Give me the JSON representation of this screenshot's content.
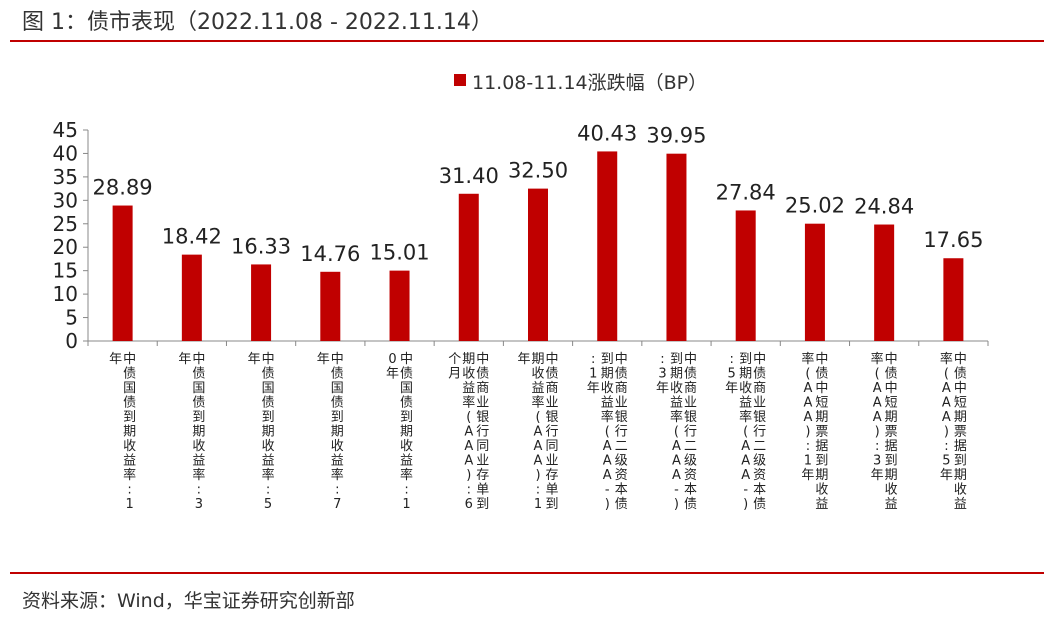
{
  "figure": {
    "title": "图 1：债市表现（2022.11.08 - 2022.11.14）",
    "source": "资料来源：Wind，华宝证券研究创新部"
  },
  "colors": {
    "bar": "#c00000",
    "rule": "#c00000",
    "axis": "#888888"
  },
  "chart_data": {
    "type": "bar",
    "title": "",
    "xlabel": "",
    "ylabel": "",
    "ylim": [
      0,
      45
    ],
    "yticks": [
      0,
      5,
      10,
      15,
      20,
      25,
      30,
      35,
      40,
      45
    ],
    "grid": false,
    "legend_position": "top-center",
    "categories": [
      "中债国债到期收益率:1年",
      "中债国债到期收益率:3年",
      "中债国债到期收益率:5年",
      "中债国债到期收益率:7年",
      "中债国债到期收益率:10年",
      "中债商业银行同业存单到期收益率(AAA):6个月",
      "中债商业银行同业存单到期收益率(AAA):1年",
      "中债商业银行二级资本债到期收益率(AAA-):1年",
      "中债商业银行二级资本债到期收益率(AAA-):3年",
      "中债商业银行二级资本债到期收益率(AAA-):5年",
      "中债中短期票据到期收益率(AAA):1年",
      "中债中短期票据到期收益率(AAA):3年",
      "中债中短期票据到期收益率(AAA):5年"
    ],
    "series": [
      {
        "name": "11.08-11.14涨跌幅（BP）",
        "values": [
          28.89,
          18.42,
          16.33,
          14.76,
          15.01,
          31.4,
          32.5,
          40.43,
          39.95,
          27.84,
          25.02,
          24.84,
          17.65
        ],
        "labels": [
          "28.89",
          "18.42",
          "16.33",
          "14.76",
          "15.01",
          "31.40",
          "32.50",
          "40.43",
          "39.95",
          "27.84",
          "25.02",
          "24.84",
          "17.65"
        ]
      }
    ]
  }
}
